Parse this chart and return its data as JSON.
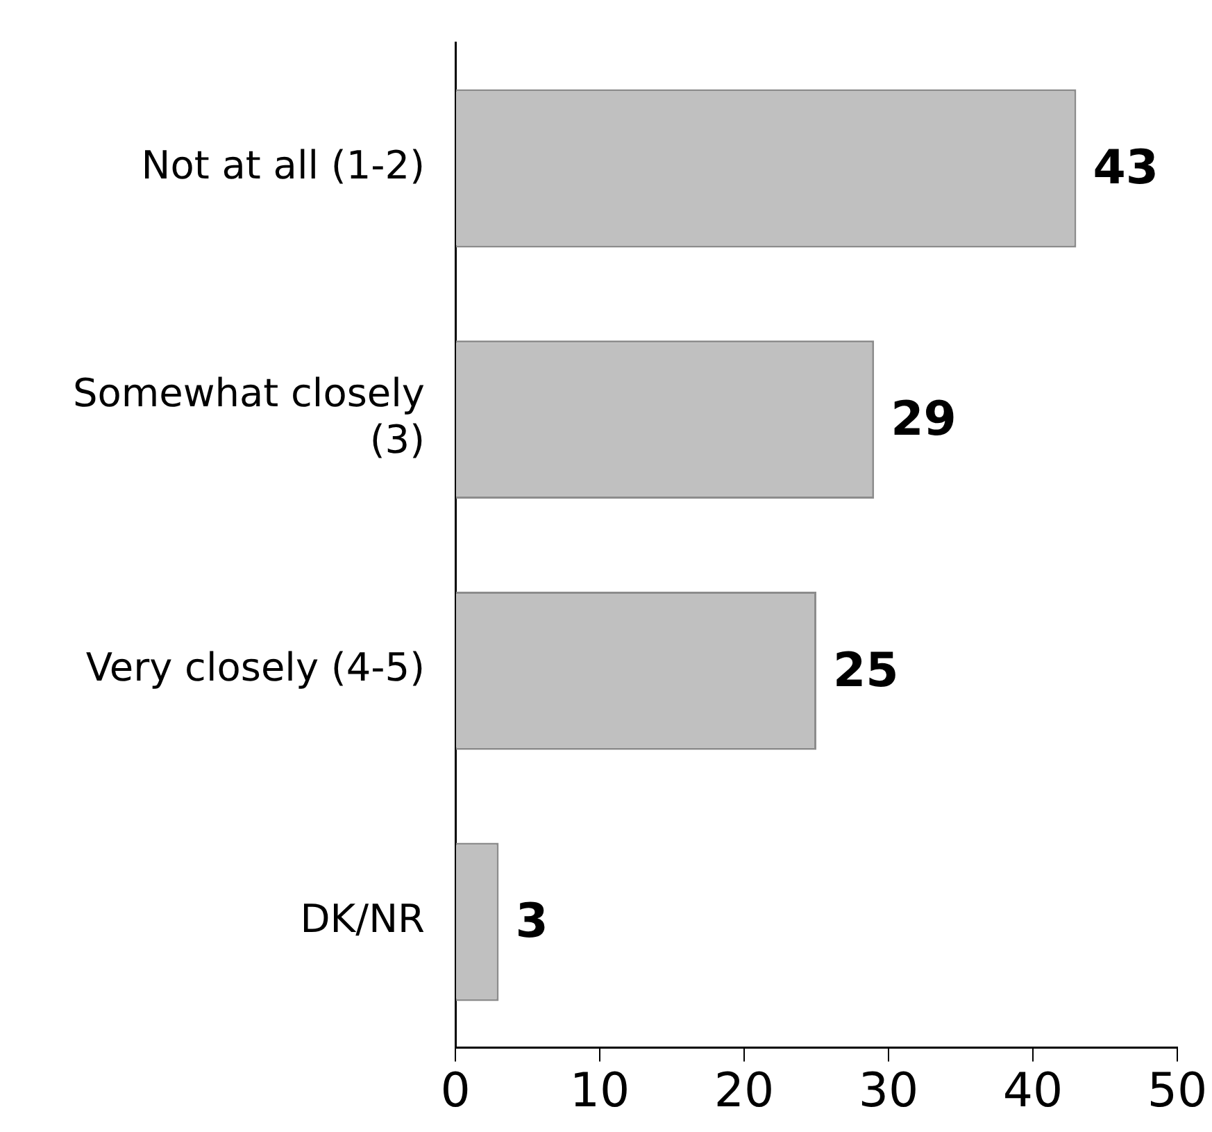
{
  "chart_data": {
    "type": "bar",
    "orientation": "horizontal",
    "categories": [
      "Not at all (1-2)",
      "Somewhat closely (3)",
      "Very closely (4-5)",
      "DK/NR"
    ],
    "values": [
      43,
      29,
      25,
      3
    ],
    "color": "#c0c0c0",
    "xlim": [
      0,
      50
    ],
    "xticks": [
      0,
      10,
      20,
      30,
      40,
      50
    ],
    "grid": false,
    "data_labels": true
  }
}
